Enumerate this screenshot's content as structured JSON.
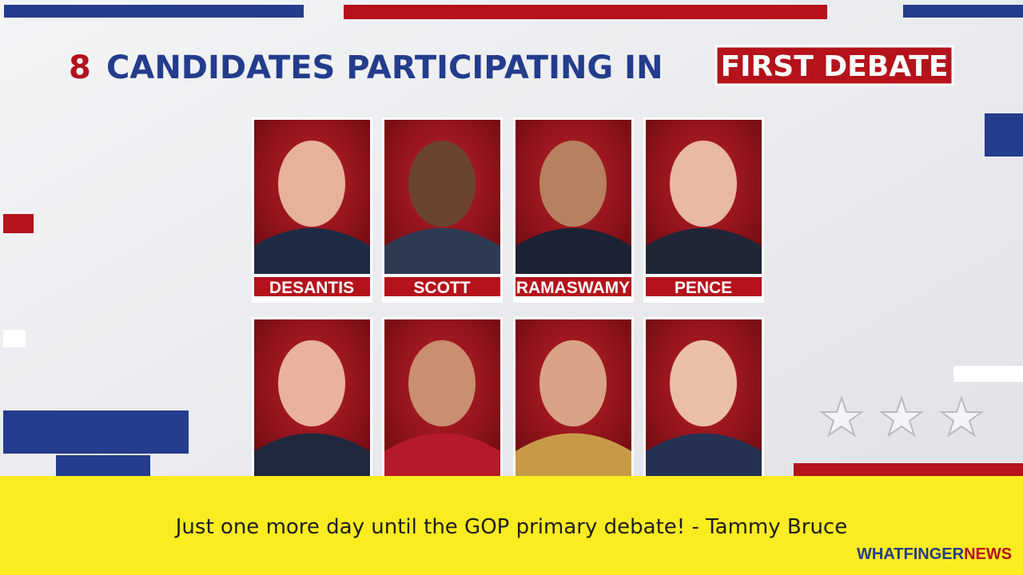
{
  "headline": {
    "number": "8",
    "text": "CANDIDATES PARTICIPATING IN",
    "badge": "FIRST DEBATE"
  },
  "candidates": {
    "top_row": [
      "DESANTIS",
      "SCOTT",
      "RAMASWAMY",
      "PENCE"
    ]
  },
  "caption": "Just one more day until the GOP primary debate! - Tammy Bruce",
  "logo": {
    "part1": "WHATFINGER",
    "part2": "NEWS"
  }
}
